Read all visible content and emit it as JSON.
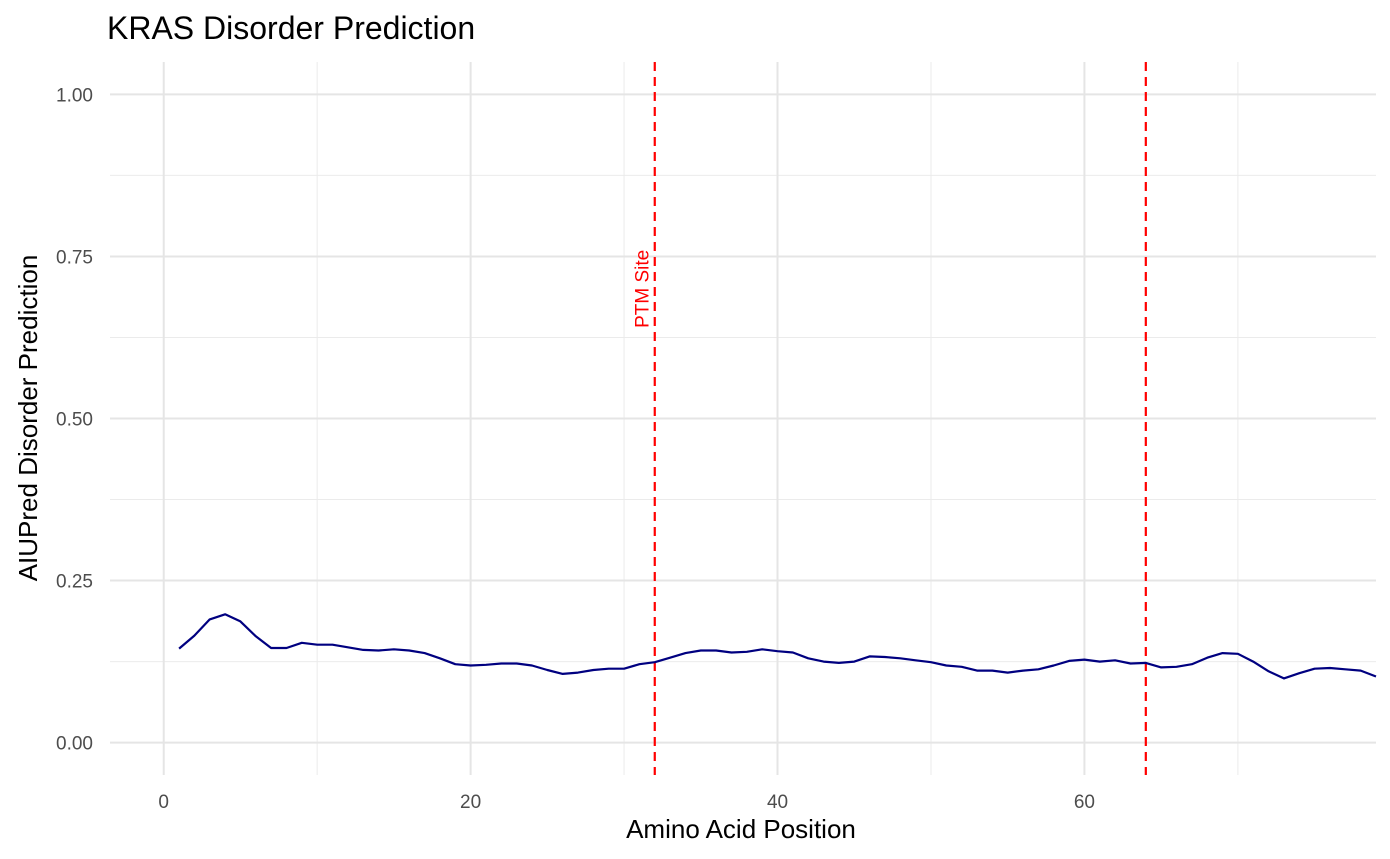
{
  "chart_data": {
    "type": "line",
    "title": "KRAS Disorder Prediction",
    "xlabel": "Amino Acid Position",
    "ylabel": "AIUPred Disorder Prediction",
    "xlim": [
      -3.5,
      79
    ],
    "ylim": [
      -0.05,
      1.05
    ],
    "x_ticks": [
      0,
      20,
      40,
      60
    ],
    "x_tick_labels": [
      "0",
      "20",
      "40",
      "60"
    ],
    "y_ticks": [
      0,
      0.25,
      0.5,
      0.75,
      1.0
    ],
    "y_tick_labels": [
      "0.00",
      "0.25",
      "0.50",
      "0.75",
      "1.00"
    ],
    "grid": true,
    "line_color": "#000080",
    "series": [
      {
        "x": [
          1,
          2,
          3,
          4,
          5,
          6,
          7,
          8,
          9,
          10,
          11,
          12,
          13,
          14,
          15,
          16,
          17,
          18,
          19,
          20,
          21,
          22,
          23,
          24,
          25,
          26,
          27,
          28,
          29,
          30,
          31,
          32,
          33,
          34,
          35,
          36,
          37,
          38,
          39,
          40,
          41,
          42,
          43,
          44,
          45,
          46,
          47,
          48,
          49,
          50,
          51,
          52,
          53,
          54,
          55,
          56,
          57,
          58,
          59,
          60,
          61,
          62,
          63,
          64,
          65,
          66,
          67,
          68,
          69,
          70,
          71,
          72,
          73,
          74,
          75,
          76,
          77,
          78,
          79
        ],
        "values": [
          0.145,
          0.165,
          0.19,
          0.198,
          0.187,
          0.164,
          0.146,
          0.146,
          0.154,
          0.151,
          0.151,
          0.147,
          0.143,
          0.142,
          0.144,
          0.142,
          0.138,
          0.13,
          0.121,
          0.119,
          0.12,
          0.122,
          0.122,
          0.119,
          0.112,
          0.106,
          0.108,
          0.112,
          0.114,
          0.114,
          0.121,
          0.124,
          0.131,
          0.138,
          0.142,
          0.142,
          0.139,
          0.14,
          0.144,
          0.141,
          0.139,
          0.13,
          0.125,
          0.123,
          0.125,
          0.133,
          0.132,
          0.13,
          0.127,
          0.124,
          0.119,
          0.117,
          0.111,
          0.111,
          0.108,
          0.111,
          0.113,
          0.119,
          0.126,
          0.128,
          0.125,
          0.127,
          0.122,
          0.123,
          0.116,
          0.117,
          0.121,
          0.131,
          0.138,
          0.137,
          0.125,
          0.11,
          0.099,
          0.107,
          0.114,
          0.115,
          0.113,
          0.111,
          0.102
        ]
      }
    ],
    "reference_lines": [
      {
        "x": 32,
        "color": "#ff0000",
        "style": "dashed"
      },
      {
        "x": 64,
        "color": "#ff0000",
        "style": "dashed"
      }
    ],
    "annotations": [
      {
        "text": "PTM Site",
        "x": 31.2,
        "y": 0.7,
        "rotation": -90,
        "color": "#ff0000"
      }
    ]
  }
}
